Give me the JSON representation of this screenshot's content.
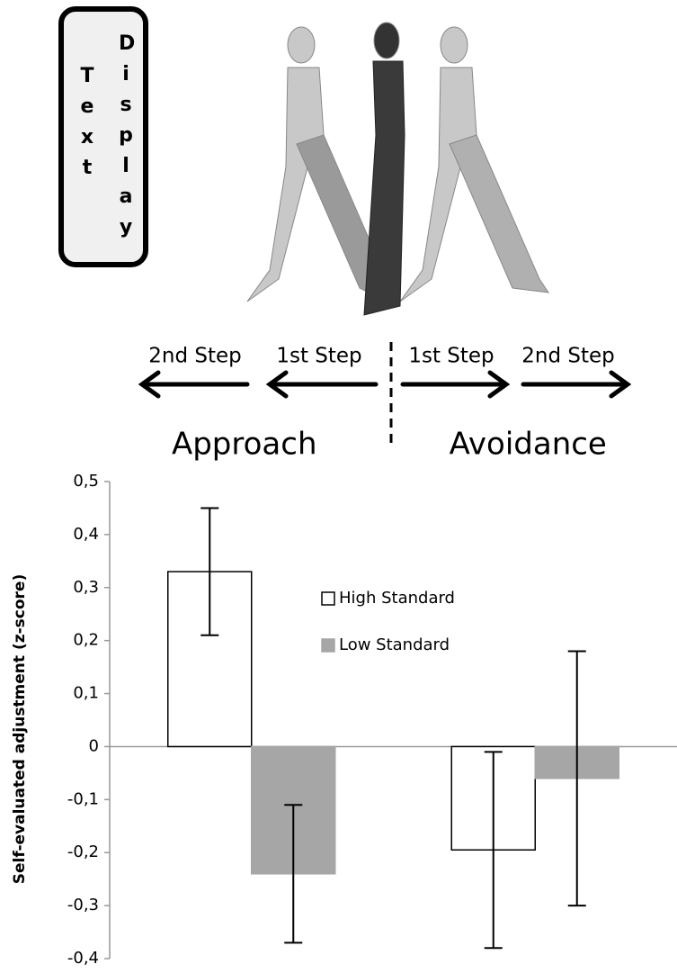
{
  "illustration": {
    "display_box": {
      "word1": "Text",
      "word2": "Display"
    },
    "steps": [
      "2nd Step",
      "1st Step",
      "1st Step",
      "2nd Step"
    ]
  },
  "chart_data": {
    "type": "bar",
    "y_label": "Self-evaluated adjustment (z-score)",
    "categories": [
      "Approach",
      "Avoidance"
    ],
    "series": [
      {
        "name": "High Standard",
        "color": "#ffffff",
        "values": [
          0.33,
          -0.195
        ],
        "errors": [
          0.12,
          0.185
        ]
      },
      {
        "name": "Low Standard",
        "color": "#a6a6a6",
        "values": [
          -0.24,
          -0.06
        ],
        "errors": [
          0.13,
          0.24
        ]
      }
    ],
    "ylim": [
      -0.4,
      0.5
    ],
    "yticks": [
      {
        "value": -0.4,
        "label": "-0,4"
      },
      {
        "value": -0.3,
        "label": "-0,3"
      },
      {
        "value": -0.2,
        "label": "-0,2"
      },
      {
        "value": -0.1,
        "label": "-0,1"
      },
      0,
      {
        "value": 0.1,
        "label": "0,1"
      },
      {
        "value": 0.2,
        "label": "0,2"
      },
      {
        "value": 0.3,
        "label": "0,3"
      },
      {
        "value": 0.4,
        "label": "0,4"
      },
      {
        "value": 0.5,
        "label": "0,5"
      }
    ]
  }
}
